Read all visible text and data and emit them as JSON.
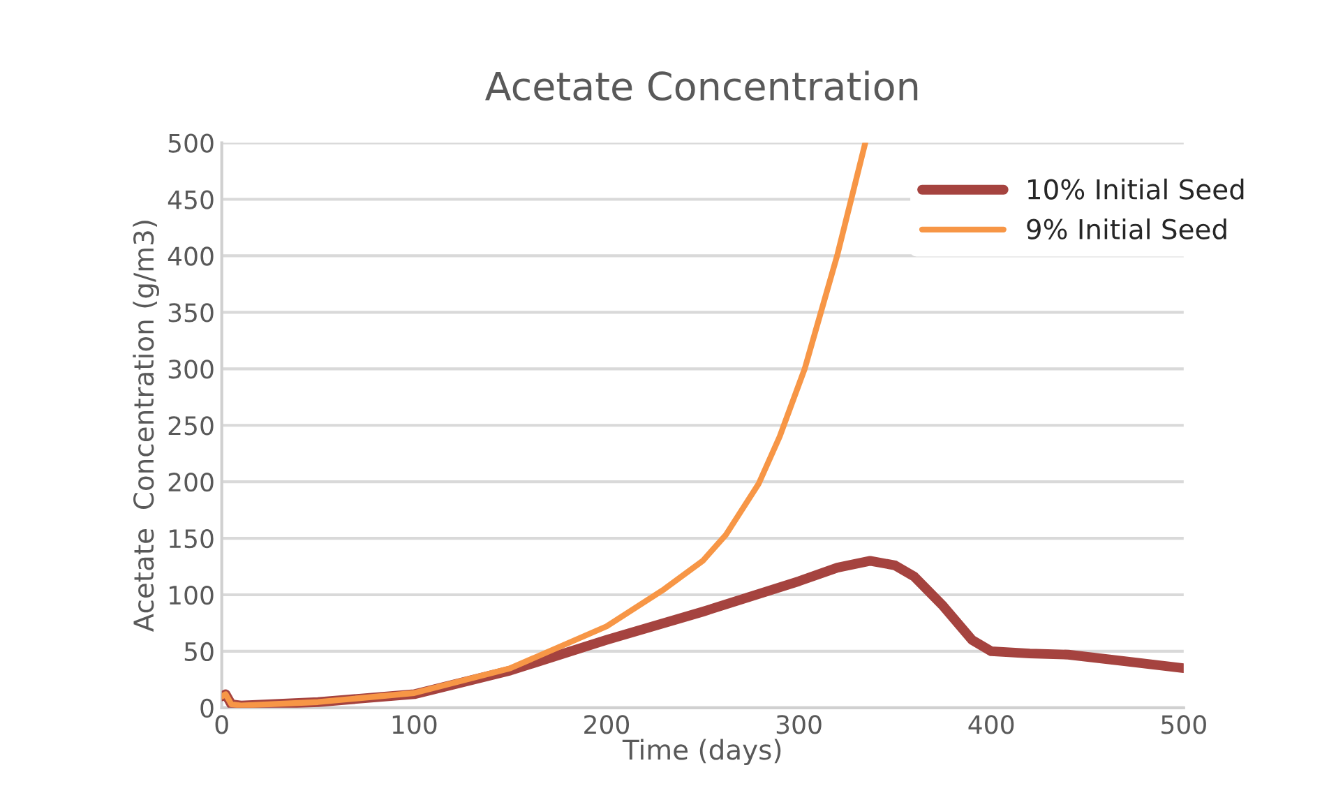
{
  "chart_data": {
    "type": "line",
    "title": "Acetate Concentration",
    "xlabel": "Time (days)",
    "ylabel": "Acetate  Concentration (g/m3)",
    "xlim": [
      0,
      500
    ],
    "xticks": [
      0,
      100,
      200,
      300,
      400,
      500
    ],
    "ylim": [
      0,
      500
    ],
    "yticks": [
      0,
      50,
      100,
      150,
      200,
      250,
      300,
      350,
      400,
      450,
      500
    ],
    "grid": "y",
    "legend": "top right",
    "marker": "none",
    "line_style": "solid",
    "series": [
      {
        "name": "10% Initial Seed",
        "color": "#a5433f",
        "x": [
          0,
          2,
          5,
          10,
          50,
          100,
          150,
          200,
          250,
          300,
          320,
          337,
          350,
          360,
          375,
          390,
          400,
          420,
          440,
          470,
          500
        ],
        "values": [
          10,
          12,
          3,
          2,
          5,
          12,
          33,
          60,
          85,
          112,
          124,
          130,
          126,
          116,
          90,
          60,
          50,
          48,
          47,
          41,
          35
        ]
      },
      {
        "name": "9% Initial Seed",
        "color": "#f79646",
        "x": [
          0,
          2,
          5,
          10,
          50,
          100,
          150,
          200,
          230,
          250,
          262,
          279,
          290,
          303,
          320,
          334.5
        ],
        "values": [
          10,
          12,
          3,
          2,
          5,
          13,
          35,
          72,
          105,
          130,
          153,
          198,
          240,
          300,
          401,
          500
        ]
      }
    ]
  }
}
